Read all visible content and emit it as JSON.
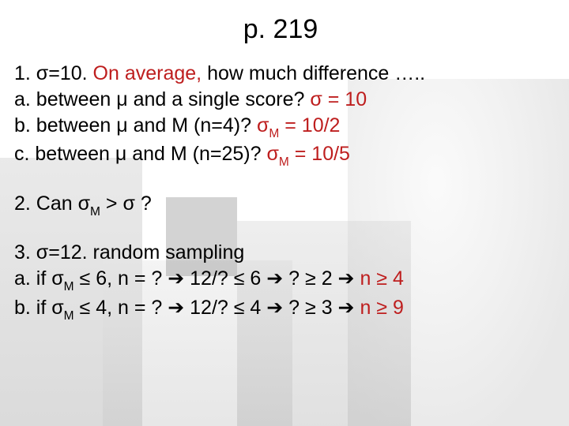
{
  "title": "p. 219",
  "colors": {
    "accent": "#be1e1e",
    "text": "#000000",
    "bg": "#ffffff"
  },
  "typography": {
    "title_fontsize": 34,
    "body_fontsize": 25,
    "font_family": "Arial"
  },
  "q1": {
    "lead_a": "1. σ=10. ",
    "lead_b": "On average,",
    "lead_c": "  how much difference …..",
    "a_text": "a. between μ and a single score? ",
    "a_ans": "σ = 10",
    "b_text": "b. between μ and M (n=4)? ",
    "b_ans_a": "σ",
    "b_ans_sub": "M",
    "b_ans_b": " = 10/2",
    "c_text": "c. between μ and M (n=25)? ",
    "c_ans_a": "σ",
    "c_ans_sub": "M",
    "c_ans_b": " = 10/5"
  },
  "q2": {
    "a": "2. Can σ",
    "sub": "M",
    "b": " > σ ?"
  },
  "q3": {
    "lead": "3. σ=12. random sampling",
    "a": {
      "p1": "a.  if σ",
      "sub": "M",
      "p2": " ≤ 6, n = ? ",
      "arr1": "➔",
      "p3": " 12/? ≤ 6 ",
      "arr2": "➔",
      "p4": " ? ≥ 2 ",
      "arr3": "➔",
      "ans": " n ≥ 4"
    },
    "b": {
      "p1": "b.  if σ",
      "sub": "M",
      "p2": " ≤ 4, n = ? ",
      "arr1": "➔",
      "p3": " 12/? ≤ 4 ",
      "arr2": "➔",
      "p4": " ? ≥ 3 ",
      "arr3": "➔",
      "ans": " n ≥ 9"
    }
  }
}
